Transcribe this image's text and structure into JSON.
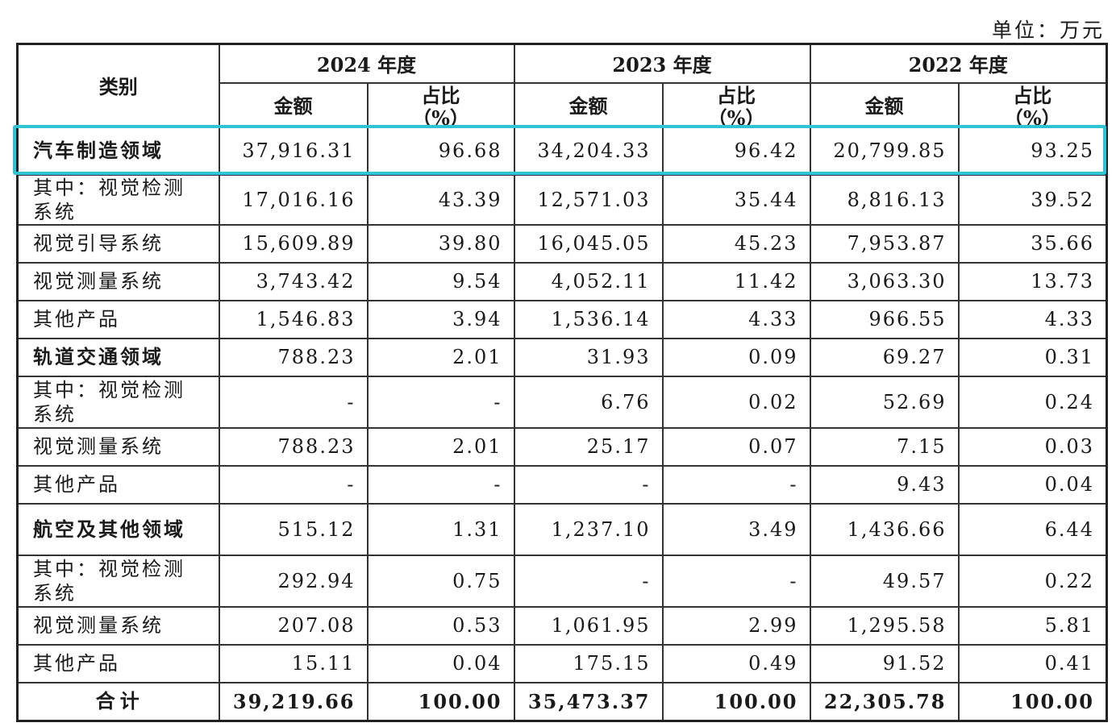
{
  "unit_label": "单位：万元",
  "header": {
    "category": "类别",
    "years": [
      "2024 年度",
      "2023 年度",
      "2022 年度"
    ],
    "amount": "金额",
    "ratio": "占比",
    "ratio_unit": "（%）"
  },
  "rows": [
    {
      "cat": "汽车制造领域",
      "bold": true,
      "v": [
        "37,916.31",
        "96.68",
        "34,204.33",
        "96.42",
        "20,799.85",
        "93.25"
      ]
    },
    {
      "cat": "其中：视觉检测系统",
      "bold": false,
      "v": [
        "17,016.16",
        "43.39",
        "12,571.03",
        "35.44",
        "8,816.13",
        "39.52"
      ]
    },
    {
      "cat": "视觉引导系统",
      "bold": false,
      "v": [
        "15,609.89",
        "39.80",
        "16,045.05",
        "45.23",
        "7,953.87",
        "35.66"
      ]
    },
    {
      "cat": "视觉测量系统",
      "bold": false,
      "v": [
        "3,743.42",
        "9.54",
        "4,052.11",
        "11.42",
        "3,063.30",
        "13.73"
      ]
    },
    {
      "cat": "其他产品",
      "bold": false,
      "v": [
        "1,546.83",
        "3.94",
        "1,536.14",
        "4.33",
        "966.55",
        "4.33"
      ]
    },
    {
      "cat": "轨道交通领域",
      "bold": true,
      "v": [
        "788.23",
        "2.01",
        "31.93",
        "0.09",
        "69.27",
        "0.31"
      ]
    },
    {
      "cat": "其中：视觉检测系统",
      "bold": false,
      "v": [
        "-",
        "-",
        "6.76",
        "0.02",
        "52.69",
        "0.24"
      ]
    },
    {
      "cat": "视觉测量系统",
      "bold": false,
      "v": [
        "788.23",
        "2.01",
        "25.17",
        "0.07",
        "7.15",
        "0.03"
      ]
    },
    {
      "cat": "其他产品",
      "bold": false,
      "v": [
        "-",
        "-",
        "-",
        "-",
        "9.43",
        "0.04"
      ]
    },
    {
      "cat": "航空及其他领域",
      "bold": true,
      "v": [
        "515.12",
        "1.31",
        "1,237.10",
        "3.49",
        "1,436.66",
        "6.44"
      ]
    },
    {
      "cat": "其中：视觉检测系统",
      "bold": false,
      "v": [
        "292.94",
        "0.75",
        "-",
        "-",
        "49.57",
        "0.22"
      ]
    },
    {
      "cat": "视觉测量系统",
      "bold": false,
      "v": [
        "207.08",
        "0.53",
        "1,061.95",
        "2.99",
        "1,295.58",
        "5.81"
      ]
    },
    {
      "cat": "其他产品",
      "bold": false,
      "v": [
        "15.11",
        "0.04",
        "175.15",
        "0.49",
        "91.52",
        "0.41"
      ]
    }
  ],
  "total": {
    "cat": "合计",
    "v": [
      "39,219.66",
      "100.00",
      "35,473.37",
      "100.00",
      "22,305.78",
      "100.00"
    ]
  },
  "highlight_color": "#2ec4d6"
}
